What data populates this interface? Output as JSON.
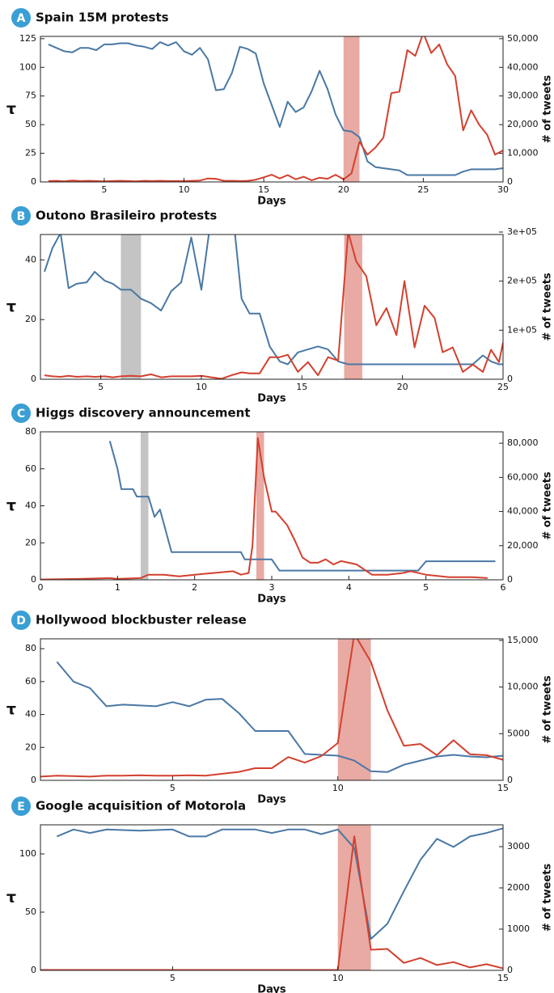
{
  "chart_data": [
    {
      "type": "line",
      "label": "A",
      "title": "Spain 15M protests",
      "xlabel": "Days",
      "ylabel": "τ",
      "y2label": "# of tweets",
      "xlim": [
        1,
        30
      ],
      "xticks": [
        5,
        10,
        15,
        20,
        25,
        30
      ],
      "ylim": [
        0,
        127
      ],
      "yticks": [
        0,
        25,
        50,
        75,
        100,
        125
      ],
      "y2lim": [
        0,
        50800
      ],
      "y2ticks": [
        0,
        {
          "value": 10000,
          "label": "10,000"
        },
        {
          "value": 20000,
          "label": "20,000"
        },
        {
          "value": 30000,
          "label": "30,000"
        },
        {
          "value": 40000,
          "label": "40,000"
        },
        {
          "value": 50000,
          "label": "50,000"
        }
      ],
      "highlights": [
        {
          "x0": 20,
          "x1": 21,
          "color": "#e8aaa3"
        }
      ],
      "series": [
        {
          "color": "#4a78a4",
          "x": [
            1.5,
            2,
            2.5,
            3,
            3.5,
            4,
            4.5,
            5,
            5.5,
            6,
            6.5,
            7,
            7.5,
            8,
            8.5,
            9,
            9.5,
            10,
            10.5,
            11,
            11.5,
            12,
            12.5,
            13,
            13.5,
            14,
            14.5,
            15,
            15.5,
            16,
            16.5,
            17,
            17.5,
            18,
            18.5,
            19,
            19.5,
            20,
            20.5,
            21,
            21.5,
            22,
            22.5,
            23,
            23.5,
            24,
            24.5,
            25,
            25.5,
            26,
            26.5,
            27,
            27.5,
            28,
            28.5,
            29,
            29.5,
            30
          ],
          "values": [
            120,
            117,
            114,
            113,
            117,
            117,
            115,
            120,
            120,
            121,
            121,
            119,
            118,
            116,
            122,
            119,
            122,
            114,
            111,
            117,
            107,
            80,
            81,
            95,
            118,
            116,
            112,
            86,
            67,
            48,
            70,
            61,
            65,
            79,
            97,
            81,
            59,
            45,
            44,
            39,
            18,
            13,
            12,
            11,
            10,
            6,
            6,
            6,
            6,
            6,
            6,
            6,
            9,
            11,
            11,
            11,
            11,
            12
          ]
        },
        {
          "color": "#d3402e",
          "axis": "y2",
          "x": [
            1.5,
            2,
            2.5,
            3,
            3.5,
            4,
            4.5,
            5,
            5.5,
            6,
            6.5,
            7,
            7.5,
            8,
            8.5,
            9,
            9.5,
            10,
            10.5,
            11,
            11.5,
            12,
            12.5,
            13,
            13.5,
            14,
            14.5,
            15,
            15.5,
            16,
            16.5,
            17,
            17.5,
            18,
            18.5,
            19,
            19.5,
            20,
            20.5,
            21,
            21.5,
            22,
            22.5,
            23,
            23.5,
            24,
            24.5,
            25,
            25.5,
            26,
            26.5,
            27,
            27.5,
            28,
            28.5,
            29,
            29.5,
            30
          ],
          "values": [
            300,
            400,
            200,
            500,
            300,
            400,
            300,
            200,
            300,
            400,
            300,
            200,
            400,
            300,
            400,
            300,
            300,
            300,
            400,
            500,
            1200,
            1100,
            400,
            400,
            300,
            400,
            800,
            1600,
            2500,
            1200,
            2400,
            900,
            1800,
            600,
            1500,
            1100,
            2500,
            900,
            3000,
            14000,
            9500,
            12000,
            15500,
            31000,
            31500,
            46000,
            44000,
            52000,
            45000,
            48000,
            41000,
            37000,
            18000,
            25000,
            20000,
            16500,
            9500,
            11000
          ]
        }
      ]
    },
    {
      "type": "line",
      "label": "B",
      "title": "Outono Brasileiro protests",
      "xlabel": "Days",
      "ylabel": "τ",
      "y2label": "# of tweets",
      "xlim": [
        2,
        25
      ],
      "xticks": [
        5,
        10,
        15,
        20,
        25
      ],
      "ylim": [
        0,
        48.5
      ],
      "yticks": [
        0,
        20,
        40
      ],
      "y2lim": [
        0,
        295000
      ],
      "y2ticks": [
        0,
        {
          "value": 100000,
          "label": "1e+05"
        },
        {
          "value": 200000,
          "label": "2e+05"
        },
        {
          "value": 300000,
          "label": "3e+05"
        }
      ],
      "highlights": [
        {
          "x0": 6,
          "x1": 7,
          "color": "#c4c4c4"
        },
        {
          "x0": 17.1,
          "x1": 18,
          "color": "#e8aaa3"
        }
      ],
      "series": [
        {
          "color": "#4a78a4",
          "x": [
            2.2,
            2.6,
            3,
            3.4,
            3.8,
            4.3,
            4.7,
            5.2,
            5.6,
            6,
            6.5,
            7,
            7.5,
            8,
            8.5,
            9,
            9.5,
            10,
            10.5,
            11,
            11.5,
            12,
            12.4,
            12.9,
            13.4,
            13.9,
            14.3,
            14.8,
            15.3,
            15.8,
            16.3,
            16.8,
            17.3,
            17.7,
            18.2,
            18.7,
            19.2,
            19.7,
            20.1,
            20.6,
            21.1,
            21.6,
            22,
            22.5,
            23,
            23.5,
            24,
            24.4,
            24.8,
            25
          ],
          "values": [
            36,
            44,
            49,
            30.5,
            32,
            32.5,
            36,
            33,
            32,
            30,
            30,
            27,
            25.5,
            23,
            29.5,
            32.5,
            47.5,
            30,
            55,
            60,
            60,
            27,
            22,
            22,
            11,
            6,
            5,
            9,
            10,
            11,
            10,
            6,
            5,
            5,
            5,
            5,
            5,
            5,
            5,
            5,
            5,
            5,
            5,
            5,
            5,
            5,
            8,
            6,
            5,
            5
          ]
        },
        {
          "color": "#d3402e",
          "axis": "y2",
          "x": [
            2.2,
            2.6,
            3,
            3.4,
            3.8,
            4.3,
            4.7,
            5.2,
            5.6,
            6,
            6.5,
            7,
            7.5,
            8,
            8.5,
            9,
            9.5,
            10,
            10.5,
            11,
            11.5,
            12,
            12.4,
            12.9,
            13.4,
            13.9,
            14.3,
            14.8,
            15.3,
            15.8,
            16.3,
            16.8,
            17.3,
            17.7,
            18.2,
            18.7,
            19.2,
            19.7,
            20.1,
            20.6,
            21.1,
            21.6,
            22,
            22.5,
            23,
            23.5,
            24,
            24.4,
            24.8,
            25
          ],
          "values": [
            8000,
            6000,
            5000,
            7000,
            5000,
            6000,
            5000,
            6000,
            4000,
            6000,
            7000,
            6000,
            10000,
            4000,
            6000,
            6000,
            6000,
            7000,
            4000,
            1000,
            8000,
            14000,
            12000,
            12000,
            45000,
            45000,
            50000,
            15000,
            35000,
            8000,
            45000,
            38000,
            300000,
            240000,
            210000,
            110000,
            145000,
            90000,
            200000,
            65000,
            150000,
            125000,
            55000,
            65000,
            15000,
            30000,
            15000,
            60000,
            35000,
            75000
          ]
        }
      ]
    },
    {
      "type": "line",
      "label": "C",
      "title": "Higgs discovery announcement",
      "xlabel": "Days",
      "ylabel": "τ",
      "y2label": "# of tweets",
      "xlim": [
        0,
        6
      ],
      "xticks": [
        0,
        1,
        2,
        3,
        4,
        5,
        6
      ],
      "ylim": [
        0,
        80
      ],
      "yticks": [
        0,
        20,
        40,
        60,
        80
      ],
      "y2lim": [
        0,
        86700
      ],
      "y2ticks": [
        0,
        {
          "value": 20000,
          "label": "20,000"
        },
        {
          "value": 40000,
          "label": "40,000"
        },
        {
          "value": 60000,
          "label": "60,000"
        },
        {
          "value": 80000,
          "label": "80,000"
        }
      ],
      "highlights": [
        {
          "x0": 1.3,
          "x1": 1.4,
          "color": "#c4c4c4"
        },
        {
          "x0": 2.8,
          "x1": 2.9,
          "color": "#e8aaa3"
        }
      ],
      "series": [
        {
          "color": "#4a78a4",
          "x": [
            0.9,
            1,
            1.05,
            1.2,
            1.25,
            1.4,
            1.48,
            1.55,
            1.7,
            2.6,
            2.65,
            3,
            3.1,
            4.9,
            5,
            5.9
          ],
          "values": [
            75,
            60,
            49,
            49,
            45,
            45,
            34,
            38,
            15,
            15,
            11,
            11,
            5,
            5,
            10,
            10
          ]
        },
        {
          "color": "#d3402e",
          "axis": "y2",
          "x": [
            0,
            0.5,
            0.9,
            1,
            1.3,
            1.4,
            1.6,
            1.8,
            2,
            2.5,
            2.6,
            2.7,
            2.75,
            2.82,
            2.9,
            3,
            3.05,
            3.2,
            3.3,
            3.4,
            3.5,
            3.6,
            3.7,
            3.8,
            3.9,
            4,
            4.1,
            4.2,
            4.3,
            4.5,
            4.7,
            4.8,
            5,
            5.3,
            5.6,
            5.8
          ],
          "values": [
            200,
            500,
            1000,
            500,
            1000,
            3000,
            3000,
            2000,
            3000,
            5000,
            3000,
            4000,
            20000,
            83000,
            60000,
            40000,
            40000,
            32000,
            23000,
            13000,
            10000,
            10000,
            12000,
            9000,
            11000,
            10000,
            9000,
            6000,
            3000,
            3000,
            4000,
            5000,
            3000,
            1500,
            1500,
            1000
          ]
        }
      ]
    },
    {
      "type": "line",
      "label": "D",
      "title": "Hollywood blockbuster release",
      "xlabel": "Days",
      "ylabel": "τ",
      "y2label": "# of tweets",
      "xlim": [
        1,
        15
      ],
      "xticks": [
        5,
        10,
        15
      ],
      "ylim": [
        0,
        86
      ],
      "yticks": [
        0,
        20,
        40,
        60,
        80
      ],
      "y2lim": [
        0,
        15170
      ],
      "y2ticks": [
        0,
        5000,
        {
          "value": 10000,
          "label": "10,000"
        },
        {
          "value": 15000,
          "label": "15,000"
        }
      ],
      "highlights": [
        {
          "x0": 10,
          "x1": 11,
          "color": "#e8aaa3"
        }
      ],
      "series": [
        {
          "color": "#4a78a4",
          "x": [
            1.5,
            2,
            2.5,
            3,
            3.5,
            4,
            4.5,
            5,
            5.5,
            6,
            6.5,
            7,
            7.5,
            8,
            8.5,
            9,
            9.5,
            10,
            10.5,
            11,
            11.5,
            12,
            12.5,
            13,
            13.5,
            14,
            14.5,
            15
          ],
          "values": [
            72,
            60,
            56,
            45,
            46,
            45.5,
            45,
            47.5,
            45,
            49,
            49.5,
            41,
            30,
            30,
            30,
            16,
            15.5,
            15,
            12,
            5.5,
            5,
            9.5,
            12,
            14.5,
            15.5,
            14.5,
            14,
            15
          ]
        },
        {
          "color": "#d3402e",
          "axis": "y2",
          "x": [
            1,
            1.5,
            2,
            2.5,
            3,
            3.5,
            4,
            4.5,
            5,
            5.5,
            6,
            6.5,
            7,
            7.5,
            8,
            8.5,
            9,
            9.5,
            10,
            10.5,
            11,
            11.5,
            12,
            12.5,
            13,
            13.5,
            14,
            14.5,
            15
          ],
          "values": [
            400,
            500,
            450,
            400,
            500,
            500,
            550,
            500,
            500,
            550,
            500,
            700,
            900,
            1300,
            1300,
            2500,
            1900,
            2600,
            4000,
            15700,
            12700,
            7500,
            3700,
            3900,
            2700,
            4300,
            2800,
            2700,
            2200
          ]
        }
      ]
    },
    {
      "type": "line",
      "label": "E",
      "title": "Google acquisition of Motorola",
      "xlabel": "Days",
      "ylabel": "τ",
      "y2label": "# of tweets",
      "xlim": [
        1,
        15
      ],
      "xticks": [
        5,
        10,
        15
      ],
      "ylim": [
        0,
        125
      ],
      "yticks": [
        0,
        50,
        100
      ],
      "y2lim": [
        0,
        3530
      ],
      "y2ticks": [
        0,
        1000,
        2000,
        3000
      ],
      "highlights": [
        {
          "x0": 10,
          "x1": 11,
          "color": "#e8aaa3"
        }
      ],
      "series": [
        {
          "color": "#4a78a4",
          "x": [
            1.5,
            2,
            2.5,
            3,
            3.5,
            4,
            4.5,
            5,
            5.5,
            6,
            6.5,
            7,
            7.5,
            8,
            8.5,
            9,
            9.5,
            10,
            10.5,
            11,
            11.5,
            12,
            12.5,
            13,
            13.5,
            14,
            14.5,
            15
          ],
          "values": [
            115,
            121,
            118,
            121,
            120.5,
            120,
            120.5,
            121,
            115,
            115,
            121,
            121,
            121,
            118,
            121,
            121,
            117,
            121,
            105,
            27,
            40,
            68,
            95,
            113,
            106,
            115,
            118,
            122
          ]
        },
        {
          "color": "#d3402e",
          "axis": "y2",
          "x": [
            1,
            1.5,
            2,
            2.5,
            3,
            3.5,
            4,
            4.5,
            5,
            5.5,
            6,
            6.5,
            7,
            7.5,
            8,
            8.5,
            9,
            9.5,
            10,
            10.5,
            11,
            11.5,
            12,
            12.5,
            13,
            13.5,
            14,
            14.5,
            15
          ],
          "values": [
            10,
            10,
            10,
            10,
            10,
            10,
            10,
            10,
            10,
            10,
            10,
            10,
            10,
            10,
            10,
            10,
            10,
            10,
            10,
            3250,
            500,
            520,
            180,
            300,
            130,
            200,
            70,
            150,
            50
          ]
        }
      ]
    }
  ]
}
